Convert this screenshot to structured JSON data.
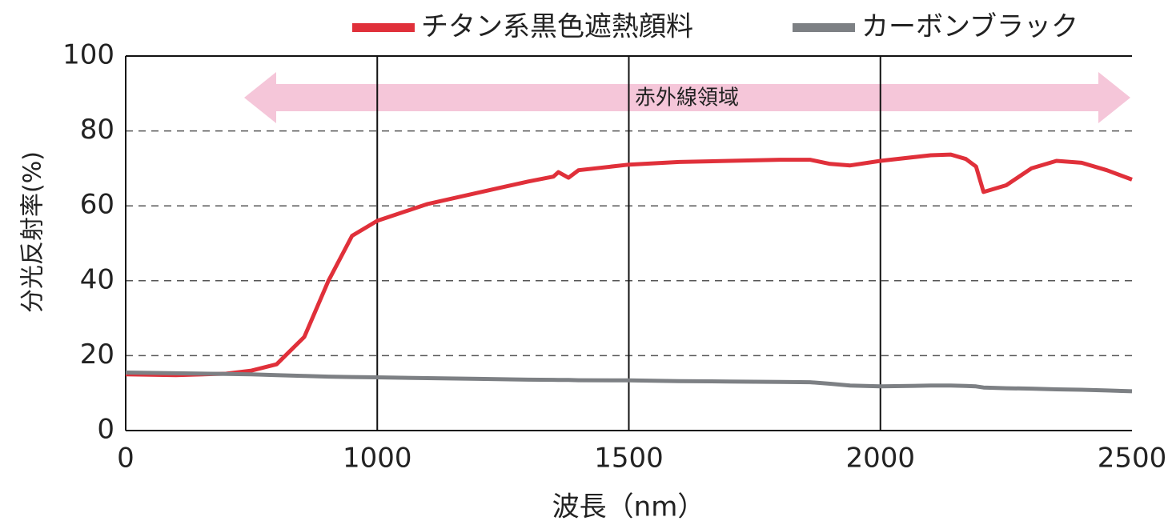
{
  "chart_data": {
    "type": "line",
    "x_label": "波長（nm）",
    "y_label": "分光反射率(%)",
    "annotation": "赤外線領域",
    "x": [
      500,
      600,
      700,
      750,
      800,
      855,
      903,
      950,
      1000,
      1100,
      1200,
      1300,
      1350,
      1360,
      1380,
      1400,
      1500,
      1600,
      1700,
      1800,
      1860,
      1900,
      1940,
      2000,
      2100,
      2140,
      2170,
      2190,
      2205,
      2250,
      2300,
      2350,
      2400,
      2450,
      2500
    ],
    "series": [
      {
        "name": "チタン系黒色遮熱顔料",
        "color": "#e0303a",
        "values": [
          15,
          14.8,
          15.2,
          16,
          17.7,
          25,
          40,
          52,
          56,
          60.5,
          63.5,
          66.5,
          67.8,
          69,
          67.5,
          69.5,
          71,
          71.7,
          72,
          72.3,
          72.3,
          71.2,
          70.8,
          72,
          73.5,
          73.7,
          72.5,
          70.5,
          63.7,
          65.5,
          70,
          72,
          71.5,
          69.5,
          67
        ]
      },
      {
        "name": "カーボンブラック",
        "color": "#7d8084",
        "values": [
          15.5,
          15.3,
          15.1,
          15,
          14.8,
          14.6,
          14.4,
          14.3,
          14.2,
          14,
          13.8,
          13.6,
          13.55,
          13.5,
          13.5,
          13.45,
          13.4,
          13.2,
          13.1,
          13,
          12.9,
          12.5,
          12,
          11.8,
          12,
          12,
          11.9,
          11.8,
          11.5,
          11.3,
          11.2,
          11,
          10.9,
          10.7,
          10.5
        ]
      }
    ],
    "xlim": [
      500,
      2500
    ],
    "xticks": [
      {
        "value": 500,
        "label": "0"
      },
      1000,
      1500,
      2000,
      2500
    ],
    "ylim": [
      0,
      100
    ],
    "yticks": [
      0,
      20,
      40,
      60,
      80,
      100
    ],
    "grid": true
  }
}
